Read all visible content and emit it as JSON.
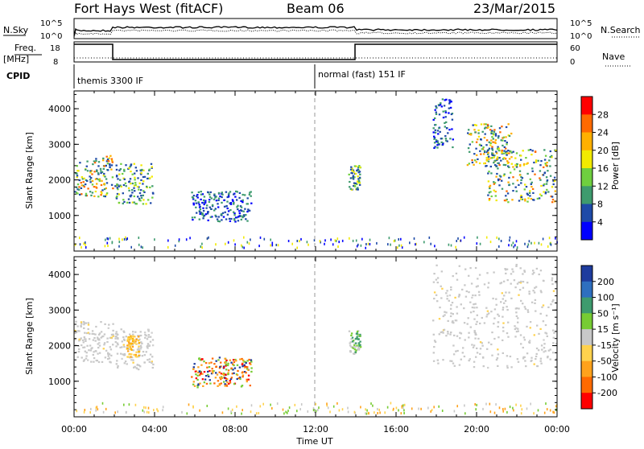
{
  "header": {
    "station": "Fort Hays West (fitACF)",
    "beam": "Beam 06",
    "date": "23/Mar/2015"
  },
  "top_panels": {
    "nsky_label": "N.Sky",
    "nsearch_label": "N.Search",
    "nsky_ticks": [
      "10^5",
      "10^0"
    ],
    "nsearch_ticks": [
      "10^5",
      "10^0"
    ],
    "freq_label": "Freq.",
    "freq_unit": "[MHz]",
    "freq_ticks": [
      "18",
      "8"
    ],
    "nave_label": "Nave",
    "nave_ticks": [
      "60",
      "0"
    ],
    "cpid_label": "CPID",
    "cpid_segments": [
      {
        "label": "themis 3300 IF",
        "start_hour": 0.0,
        "end_hour": 12.0
      },
      {
        "label": "normal (fast) 151 IF",
        "start_hour": 12.0,
        "end_hour": 24.0
      }
    ]
  },
  "chart_data": [
    {
      "type": "heatmap",
      "panel": "power",
      "ylabel": "Slant Range [km]",
      "ylim": [
        0,
        4500
      ],
      "yticks": [
        1000,
        2000,
        3000,
        4000
      ],
      "xlim": [
        0,
        24
      ],
      "colorbar_label": "Power [dB]",
      "colorbar_ticks": [
        "28",
        "24",
        "20",
        "16",
        "12",
        "8",
        "4"
      ],
      "colorbar_colors": [
        "#ff0000",
        "#ff6a00",
        "#ffb000",
        "#f2ea00",
        "#6fcf3f",
        "#3e9b6e",
        "#1e4aa8",
        "#0000ff"
      ],
      "clusters": [
        {
          "start_hour": 0.0,
          "end_hour": 1.9,
          "min_range_km": 1550,
          "max_range_km": 2700,
          "peak_db": 22
        },
        {
          "start_hour": 2.0,
          "end_hour": 3.9,
          "min_range_km": 1350,
          "max_range_km": 2500,
          "peak_db": 14
        },
        {
          "start_hour": 5.8,
          "end_hour": 8.8,
          "min_range_km": 850,
          "max_range_km": 1700,
          "peak_db": 6
        },
        {
          "start_hour": 13.6,
          "end_hour": 14.2,
          "min_range_km": 1750,
          "max_range_km": 2450,
          "peak_db": 18
        },
        {
          "start_hour": 17.8,
          "end_hour": 18.8,
          "min_range_km": 2900,
          "max_range_km": 4300,
          "peak_db": 8
        },
        {
          "start_hour": 19.5,
          "end_hour": 21.7,
          "min_range_km": 2400,
          "max_range_km": 3600,
          "peak_db": 20
        },
        {
          "start_hour": 20.5,
          "end_hour": 24.0,
          "min_range_km": 1400,
          "max_range_km": 2900,
          "peak_db": 22
        }
      ]
    },
    {
      "type": "heatmap",
      "panel": "velocity",
      "ylabel": "Slant Range [km]",
      "xlabel": "Time UT",
      "ylim": [
        0,
        4500
      ],
      "yticks": [
        1000,
        2000,
        3000,
        4000
      ],
      "xlim": [
        0,
        24
      ],
      "xticks": [
        "00:00",
        "04:00",
        "08:00",
        "12:00",
        "16:00",
        "20:00",
        "00:00"
      ],
      "colorbar_label": "Velocity [m s⁻¹]",
      "colorbar_ticks": [
        "200",
        "100",
        "50",
        "15",
        "-15",
        "-50",
        "-100",
        "-200"
      ],
      "colorbar_colors": [
        "#1e3c9e",
        "#2e6fbf",
        "#3e9b6e",
        "#77cc33",
        "#c8c8c8",
        "#ffd24d",
        "#ffa21c",
        "#ff6a00",
        "#ff0000"
      ],
      "clusters": [
        {
          "start_hour": 0.0,
          "end_hour": 1.9,
          "min_range_km": 1550,
          "max_range_km": 2700,
          "dominant": "ground"
        },
        {
          "start_hour": 2.0,
          "end_hour": 3.9,
          "min_range_km": 1350,
          "max_range_km": 2500,
          "dominant": "ground"
        },
        {
          "start_hour": 2.6,
          "end_hour": 3.2,
          "min_range_km": 1700,
          "max_range_km": 2300,
          "dominant": "-50"
        },
        {
          "start_hour": 5.8,
          "end_hour": 8.8,
          "min_range_km": 850,
          "max_range_km": 1700,
          "dominant": "-100"
        },
        {
          "start_hour": 13.6,
          "end_hour": 14.2,
          "min_range_km": 1750,
          "max_range_km": 2450,
          "dominant": "15"
        },
        {
          "start_hour": 17.8,
          "end_hour": 24.0,
          "min_range_km": 1400,
          "max_range_km": 4300,
          "dominant": "ground"
        }
      ]
    }
  ]
}
